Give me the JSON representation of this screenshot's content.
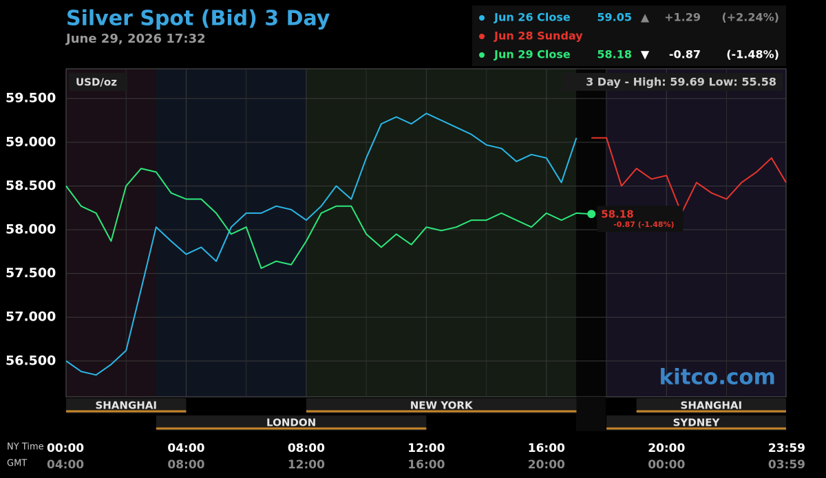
{
  "chart_data": {
    "type": "line",
    "title": "Silver Spot (Bid) 3 Day",
    "subtitle": "June 29, 2026 17:32",
    "unit_label": "USD/oz",
    "range_label": "3 Day - High: 59.69  Low: 55.58",
    "watermark": "kitco.com",
    "x_row_label": "NY Time",
    "x_gmt_row_label": "GMT",
    "x": [
      0,
      0.5,
      1,
      1.5,
      2,
      2.5,
      3,
      3.5,
      4,
      4.5,
      5,
      5.5,
      6,
      6.5,
      7,
      7.5,
      8,
      8.5,
      9,
      9.5,
      10,
      10.5,
      11,
      11.5,
      12,
      12.5,
      13,
      13.5,
      14,
      14.5,
      15,
      15.5,
      16,
      16.5,
      17,
      17.5,
      18,
      18.5,
      19,
      19.5,
      20,
      20.5,
      21,
      21.5,
      22,
      22.5,
      23,
      23.5,
      23.983
    ],
    "xlim": [
      0,
      23.983
    ],
    "xticks": [
      {
        "value": 0,
        "label": "00:00"
      },
      {
        "value": 4,
        "label": "04:00"
      },
      {
        "value": 8,
        "label": "08:00"
      },
      {
        "value": 12,
        "label": "12:00"
      },
      {
        "value": 16,
        "label": "16:00"
      },
      {
        "value": 20,
        "label": "20:00"
      },
      {
        "value": 23.983,
        "label": "23:59"
      }
    ],
    "xticks_gmt": [
      "04:00",
      "08:00",
      "12:00",
      "16:00",
      "20:00",
      "00:00",
      "03:59"
    ],
    "xminorticks": [
      2,
      6,
      10,
      14,
      18,
      22
    ],
    "ylim": [
      56.09,
      59.84
    ],
    "yticks": [
      {
        "value": 56.5,
        "label": "56.500"
      },
      {
        "value": 57,
        "label": "57.000"
      },
      {
        "value": 57.5,
        "label": "57.500"
      },
      {
        "value": 58,
        "label": "58.000"
      },
      {
        "value": 58.5,
        "label": "58.500"
      },
      {
        "value": 59,
        "label": "59.000"
      },
      {
        "value": 59.5,
        "label": "59.500"
      }
    ],
    "grid": true,
    "series": [
      {
        "name": "Jun 26 Close",
        "color": "#2ab8e8",
        "close": "59.05",
        "direction": "▲",
        "change": "+1.29",
        "change_pct": "(+2.24%)",
        "values": [
          56.5,
          56.38,
          56.34,
          56.46,
          56.62,
          57.32,
          58.03,
          57.87,
          57.72,
          57.8,
          57.64,
          58.03,
          58.19,
          58.19,
          58.27,
          58.23,
          58.11,
          58.27,
          58.5,
          58.35,
          58.82,
          59.21,
          59.29,
          59.21,
          59.33,
          59.25,
          59.17,
          59.09,
          58.97,
          58.93,
          58.78,
          58.86,
          58.82,
          58.54,
          59.05,
          null,
          null,
          null,
          null,
          null,
          null,
          null,
          null,
          null,
          null,
          null,
          null,
          null,
          null
        ]
      },
      {
        "name": "Jun 28 Sunday",
        "color": "#e8352c",
        "values": [
          null,
          null,
          null,
          null,
          null,
          null,
          null,
          null,
          null,
          null,
          null,
          null,
          null,
          null,
          null,
          null,
          null,
          null,
          null,
          null,
          null,
          null,
          null,
          null,
          null,
          null,
          null,
          null,
          null,
          null,
          null,
          null,
          null,
          null,
          null,
          59.05,
          59.05,
          58.5,
          58.7,
          58.58,
          58.62,
          58.19,
          58.54,
          58.42,
          58.35,
          58.54,
          58.66,
          58.82,
          58.54
        ]
      },
      {
        "name": "Jun 29 Close",
        "color": "#2ee87a",
        "close": "58.18",
        "direction": "▼",
        "change": "-0.87",
        "change_pct": "(-1.48%)",
        "end_note": "-0.87 (-1.48%)",
        "values": [
          58.5,
          58.27,
          58.19,
          57.87,
          58.5,
          58.7,
          58.66,
          58.42,
          58.35,
          58.35,
          58.19,
          57.95,
          58.03,
          57.56,
          57.64,
          57.6,
          57.87,
          58.19,
          58.27,
          58.27,
          57.95,
          57.8,
          57.95,
          57.83,
          58.03,
          57.99,
          58.03,
          58.11,
          58.11,
          58.19,
          58.11,
          58.03,
          58.19,
          58.11,
          58.19,
          58.18,
          null,
          null,
          null,
          null,
          null,
          null,
          null,
          null,
          null,
          null,
          null,
          null,
          null
        ]
      }
    ],
    "sessions_upper": [
      {
        "name": "SHANGHAI",
        "start": 0,
        "end": 4
      },
      {
        "name": "NEW YORK",
        "start": 8,
        "end": 17
      },
      {
        "name": "SHANGHAI",
        "start": 19,
        "end": 23.983
      }
    ],
    "sessions_lower": [
      {
        "name": "LONDON",
        "start": 3,
        "end": 12
      },
      {
        "name": "SYDNEY",
        "start": 18,
        "end": 23.983
      }
    ]
  }
}
